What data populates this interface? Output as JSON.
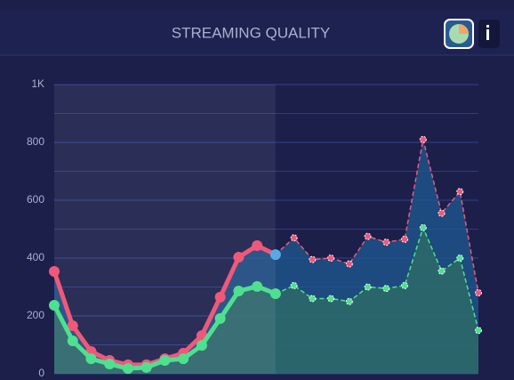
{
  "chart_data": {
    "type": "line",
    "title": "STREAMING QUALITY",
    "categories": [
      null,
      null,
      null,
      null,
      null,
      null,
      null,
      null,
      null,
      null,
      null,
      null,
      null,
      null,
      null,
      null,
      null,
      null,
      null,
      null,
      null,
      null,
      null,
      null
    ],
    "series": [
      {
        "color": "#f0587a",
        "area_color": "#1f5a92",
        "point_color": "#5aa9e6",
        "values": [
          354,
          166,
          77,
          46,
          31,
          31,
          52,
          71,
          132,
          265,
          403,
          443,
          412,
          470,
          395,
          400,
          380,
          475,
          455,
          465,
          810,
          555,
          630,
          280
        ]
      },
      {
        "color": "#4fe08f",
        "area_color": "#2f6f64",
        "point_color": "#4fe08f",
        "values": [
          237,
          114,
          52,
          34,
          18,
          22,
          46,
          52,
          98,
          191,
          286,
          302,
          277,
          305,
          260,
          260,
          250,
          300,
          295,
          305,
          505,
          355,
          400,
          150
        ]
      }
    ],
    "forecast_from": 12,
    "ylim": [
      0,
      1000
    ],
    "yticks": [
      0,
      200,
      400,
      600,
      800,
      {
        "value": 1000,
        "label": "1K"
      }
    ],
    "yminor_ticks": [
      100,
      300,
      500,
      700,
      900
    ],
    "grid": true
  }
}
